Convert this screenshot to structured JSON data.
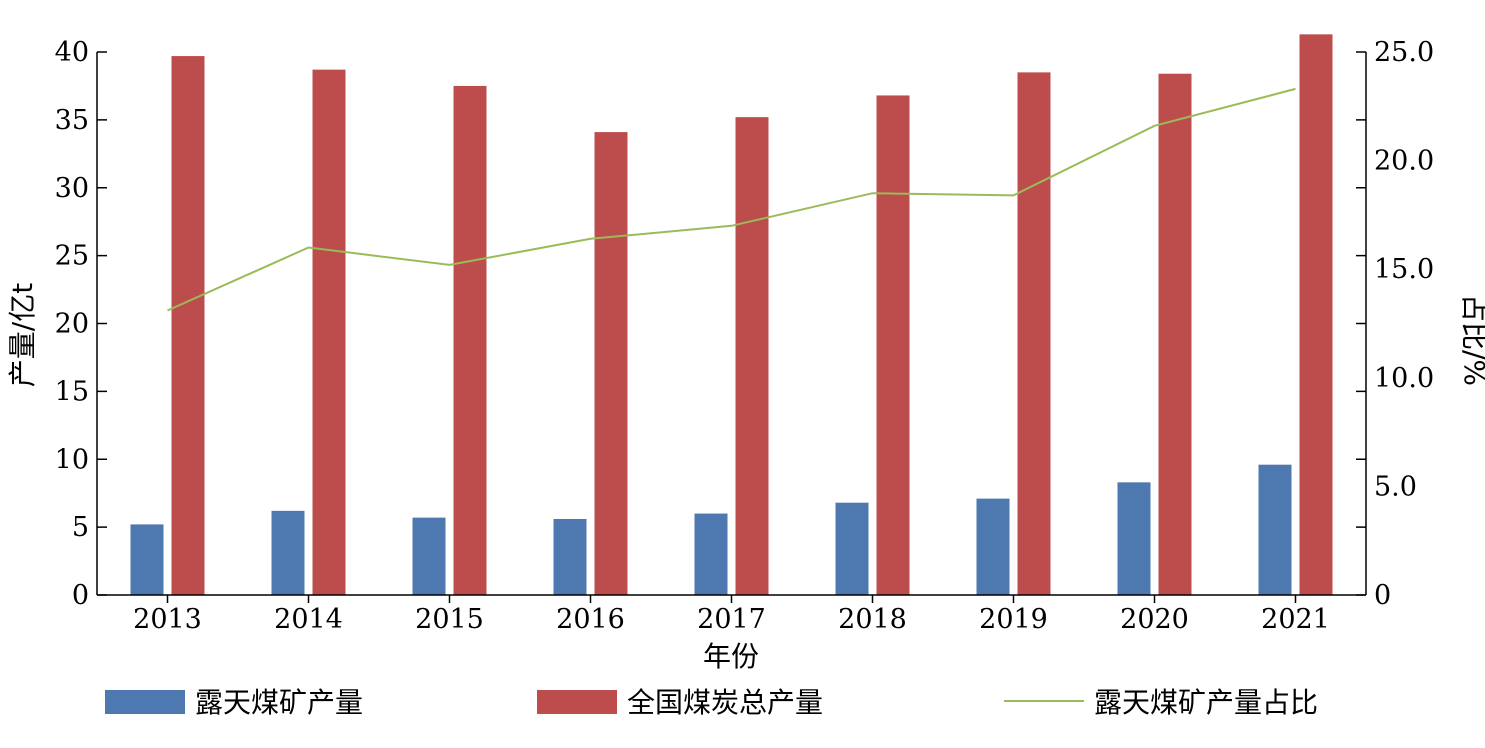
{
  "chart_data": {
    "type": "bar",
    "categories": [
      "2013",
      "2014",
      "2015",
      "2016",
      "2017",
      "2018",
      "2019",
      "2020",
      "2021"
    ],
    "series": [
      {
        "name": "露天煤矿产量",
        "kind": "bar",
        "axis": "left",
        "color": "#4e79b0",
        "values": [
          5.2,
          6.2,
          5.7,
          5.6,
          6.0,
          6.8,
          7.1,
          8.3,
          9.6
        ]
      },
      {
        "name": "全国煤炭总产量",
        "kind": "bar",
        "axis": "left",
        "color": "#bd4c4c",
        "values": [
          39.7,
          38.7,
          37.5,
          34.1,
          35.2,
          36.8,
          38.5,
          38.4,
          41.3
        ]
      },
      {
        "name": "露天煤矿产量占比",
        "kind": "line",
        "axis": "right",
        "color": "#9bbb59",
        "values": [
          13.1,
          16.0,
          15.2,
          16.4,
          17.0,
          18.5,
          18.4,
          21.6,
          23.3
        ]
      }
    ],
    "xlabel": "年份",
    "ylabel": "产量/亿t",
    "y2label": "占比/%",
    "ylim": [
      0,
      40
    ],
    "y2lim": [
      0,
      25
    ],
    "yticks": [
      "0",
      "5",
      "10",
      "15",
      "20",
      "25",
      "30",
      "35",
      "40"
    ],
    "y2ticks": [
      "0",
      "5.0",
      "10.0",
      "15.0",
      "20.0",
      "25.0"
    ],
    "grid": false,
    "legend_position": "bottom"
  }
}
